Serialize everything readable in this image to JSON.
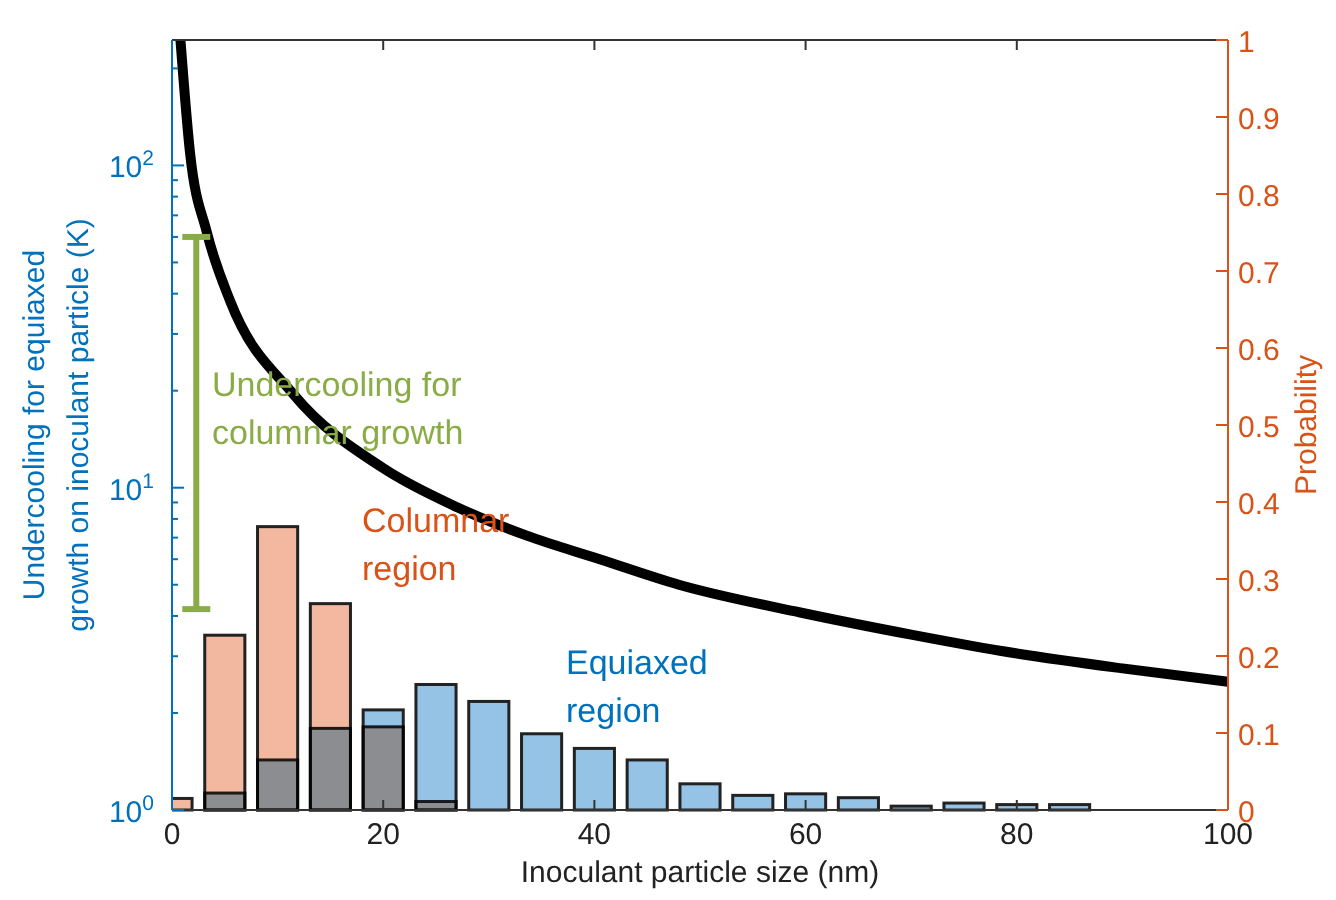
{
  "chart_data": {
    "type": "bar",
    "xlabel": "Inoculant particle size (nm)",
    "ylabel": "Undercooling for equiaxed growth on inoculant particle (K)",
    "y2label": "Probability",
    "xlim": [
      0,
      100
    ],
    "xticks": [
      0,
      20,
      40,
      60,
      80,
      100
    ],
    "ylim": [
      1,
      245
    ],
    "log": "y",
    "yticks": [
      {
        "value": 1,
        "label": "10$^{0}$"
      },
      {
        "value": 10,
        "label": "10$^{1}$"
      },
      {
        "value": 100,
        "label": "10$^{2}$"
      }
    ],
    "y2lim": [
      0,
      1
    ],
    "y2ticks": [
      0,
      0.1,
      0.2,
      0.3,
      0.4,
      0.5,
      0.6,
      0.7,
      0.8,
      0.9,
      1
    ],
    "grid": false,
    "legend": false,
    "series": [
      {
        "type": "line",
        "color": "#000000",
        "x": [
          0.8,
          1.7,
          3.3,
          5.5,
          11.5,
          20,
          27,
          33.6,
          40.5,
          48,
          59.5,
          70,
          78.4,
          90,
          100
        ],
        "values": [
          245,
          110,
          62,
          38,
          19.5,
          11.5,
          8.7,
          7.1,
          6,
          5,
          4.1,
          3.5,
          3.12,
          2.75,
          2.5
        ]
      },
      {
        "name": "Columnar region",
        "color": "#f2b8a0",
        "axis": "y2",
        "x": [
          0,
          5,
          10,
          15,
          20,
          25
        ],
        "values": [
          0.015,
          0.227,
          0.368,
          0.268,
          0.108,
          0.011
        ]
      },
      {
        "name": "Equiaxed region",
        "color": "#94c3e6",
        "axis": "y2",
        "x": [
          5,
          10,
          15,
          20,
          25,
          30,
          35,
          40,
          45,
          50,
          55,
          60,
          65,
          70,
          75,
          80,
          85
        ],
        "values": [
          0.022,
          0.065,
          0.106,
          0.13,
          0.163,
          0.141,
          0.099,
          0.08,
          0.065,
          0.034,
          0.019,
          0.021,
          0.016,
          0.005,
          0.009,
          0.007,
          0.007
        ]
      },
      {
        "type": "line",
        "name": "Undercooling for columnar growth",
        "color": "#8aac46",
        "x": [
          2.3,
          2.3
        ],
        "values": [
          4.2,
          60
        ]
      }
    ]
  }
}
